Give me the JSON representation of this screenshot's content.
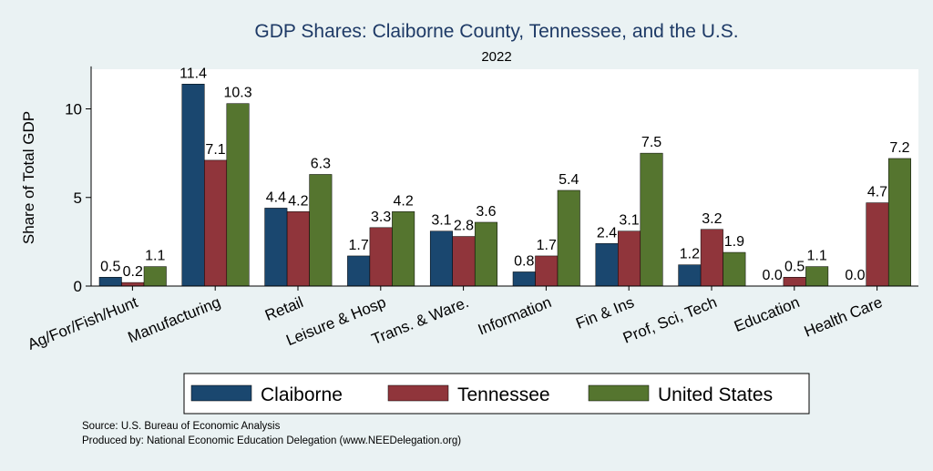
{
  "chart_data": {
    "type": "bar",
    "title": "GDP Shares: Claiborne County, Tennessee, and the U.S.",
    "subtitle": "2022",
    "xlabel": "",
    "ylabel": "Share of Total GDP",
    "ylim": [
      0,
      12.4
    ],
    "yticks": [
      0,
      5,
      10
    ],
    "grid": false,
    "legend_position": "bottom",
    "categories": [
      "Ag/For/Fish/Hunt",
      "Manufacturing",
      "Retail",
      "Leisure & Hosp",
      "Trans. & Ware.",
      "Information",
      "Fin & Ins",
      "Prof, Sci, Tech",
      "Education",
      "Health Care"
    ],
    "series": [
      {
        "name": "Claiborne",
        "color": "#1a476f",
        "values": [
          0.5,
          11.4,
          4.4,
          1.7,
          3.1,
          0.8,
          2.4,
          1.2,
          0.0,
          0.0
        ]
      },
      {
        "name": "Tennessee",
        "color": "#90353b",
        "values": [
          0.2,
          7.1,
          4.2,
          3.3,
          2.8,
          1.7,
          3.1,
          3.2,
          0.5,
          4.7
        ]
      },
      {
        "name": "United States",
        "color": "#55752f",
        "values": [
          1.1,
          10.3,
          6.3,
          4.2,
          3.6,
          5.4,
          7.5,
          1.9,
          1.1,
          7.2
        ]
      }
    ]
  },
  "notes": {
    "source": "Source: U.S. Bureau of Economic Analysis",
    "produced_by": "Produced by: National Economic Education Delegation (www.NEEDelegation.org)"
  }
}
